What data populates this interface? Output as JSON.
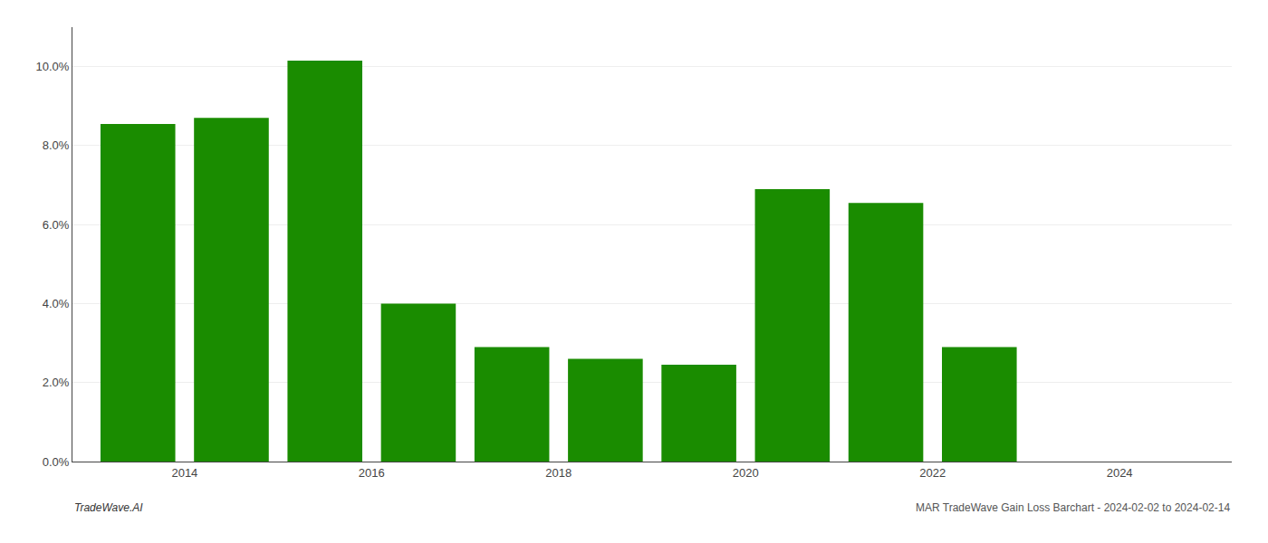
{
  "chart_data": {
    "type": "bar",
    "x": [
      2013,
      2014,
      2015,
      2016,
      2017,
      2018,
      2019,
      2020,
      2021,
      2022
    ],
    "values": [
      0.0855,
      0.087,
      0.1015,
      0.04,
      0.029,
      0.026,
      0.0245,
      0.069,
      0.0655,
      0.029
    ],
    "color": "#1a8c00",
    "xlim": [
      2012.3,
      2024.7
    ],
    "xticks": [
      {
        "value": 2013.5,
        "label": "2014"
      },
      {
        "value": 2015.5,
        "label": "2016"
      },
      {
        "value": 2017.5,
        "label": "2018"
      },
      {
        "value": 2019.5,
        "label": "2020"
      },
      {
        "value": 2021.5,
        "label": "2022"
      },
      {
        "value": 2023.5,
        "label": "2024"
      }
    ],
    "ylim": [
      0,
      0.11
    ],
    "yticks": [
      {
        "value": 0.0,
        "label": "0.0%"
      },
      {
        "value": 0.02,
        "label": "2.0%"
      },
      {
        "value": 0.04,
        "label": "4.0%"
      },
      {
        "value": 0.06,
        "label": "6.0%"
      },
      {
        "value": 0.08,
        "label": "8.0%"
      },
      {
        "value": 0.1,
        "label": "10.0%"
      }
    ],
    "grid": true,
    "annotations": [
      "TradeWave.AI",
      "MAR TradeWave Gain Loss Barchart - 2024-02-02 to 2024-02-14"
    ]
  }
}
